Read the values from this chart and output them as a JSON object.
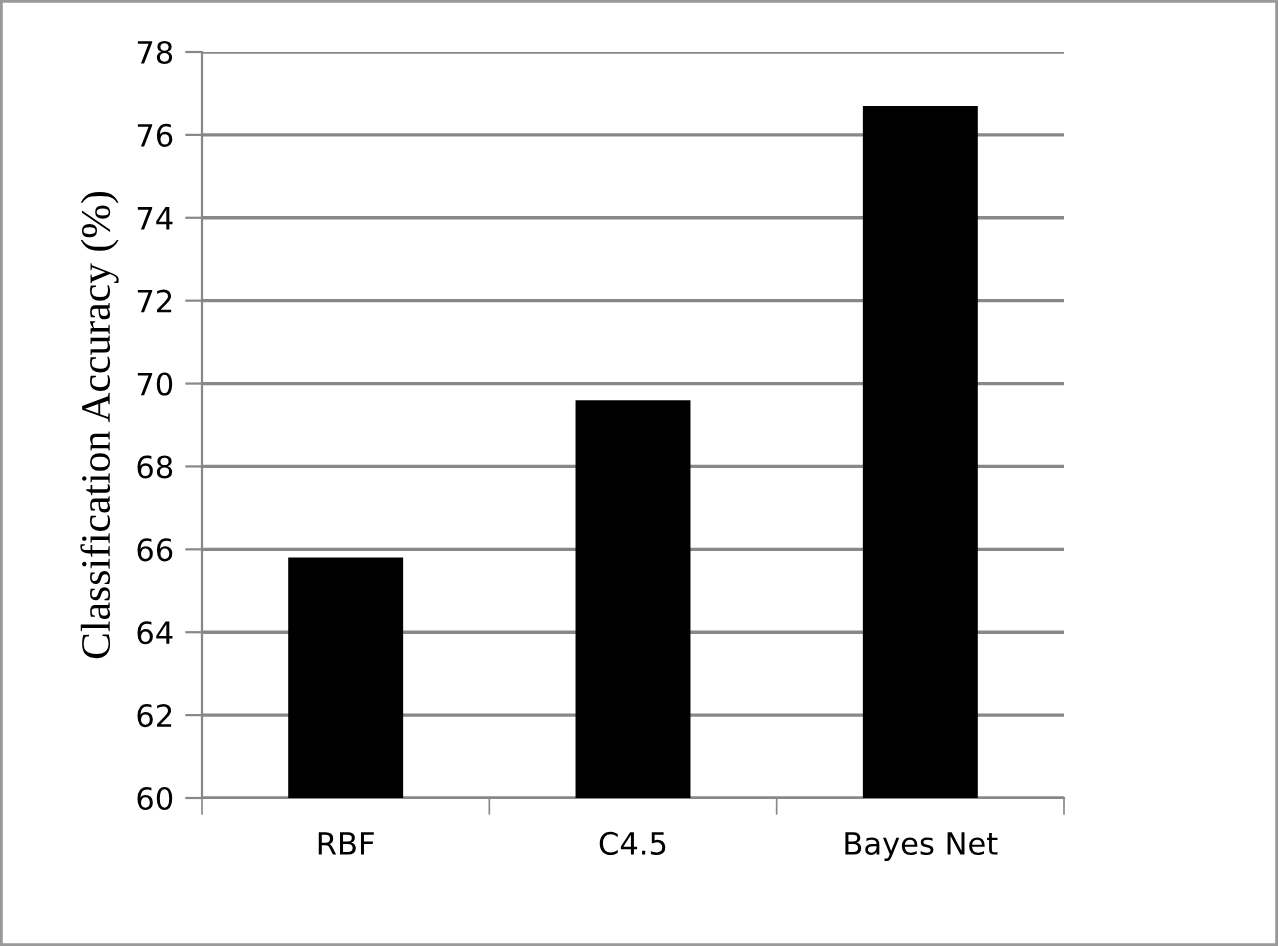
{
  "chart_data": {
    "type": "bar",
    "ylabel": "Classification Accuracy (%)",
    "categories": [
      "RBF",
      "C4.5",
      "Bayes Net"
    ],
    "values": [
      65.8,
      69.6,
      76.7
    ],
    "color": "#000000",
    "ylim": [
      60,
      78
    ],
    "yticks": [
      60,
      62,
      64,
      66,
      68,
      70,
      72,
      74,
      76,
      78
    ],
    "grid": "y"
  }
}
